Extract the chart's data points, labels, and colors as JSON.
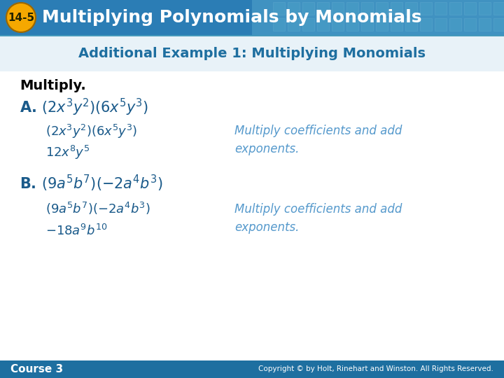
{
  "header_bg_color": "#2b7db5",
  "header_gradient_right": "#5aadd0",
  "header_text": "Multiplying Polynomials by Monomials",
  "badge_color": "#f5a800",
  "badge_border_color": "#cc8800",
  "badge_text": "14-5",
  "subheader_text": "Additional Example 1: Multiplying Monomials",
  "subheader_color": "#1e6fa0",
  "body_bg_color": "#ffffff",
  "subheader_bg_top": "#dce8f0",
  "footer_bg_color": "#1e6fa0",
  "footer_left": "Course 3",
  "footer_right": "Copyright © by Holt, Rinehart and Winston. All Rights Reserved.",
  "multiply_label": "Multiply.",
  "dark_blue": "#1a5a8a",
  "light_blue_italic": "#5599cc"
}
